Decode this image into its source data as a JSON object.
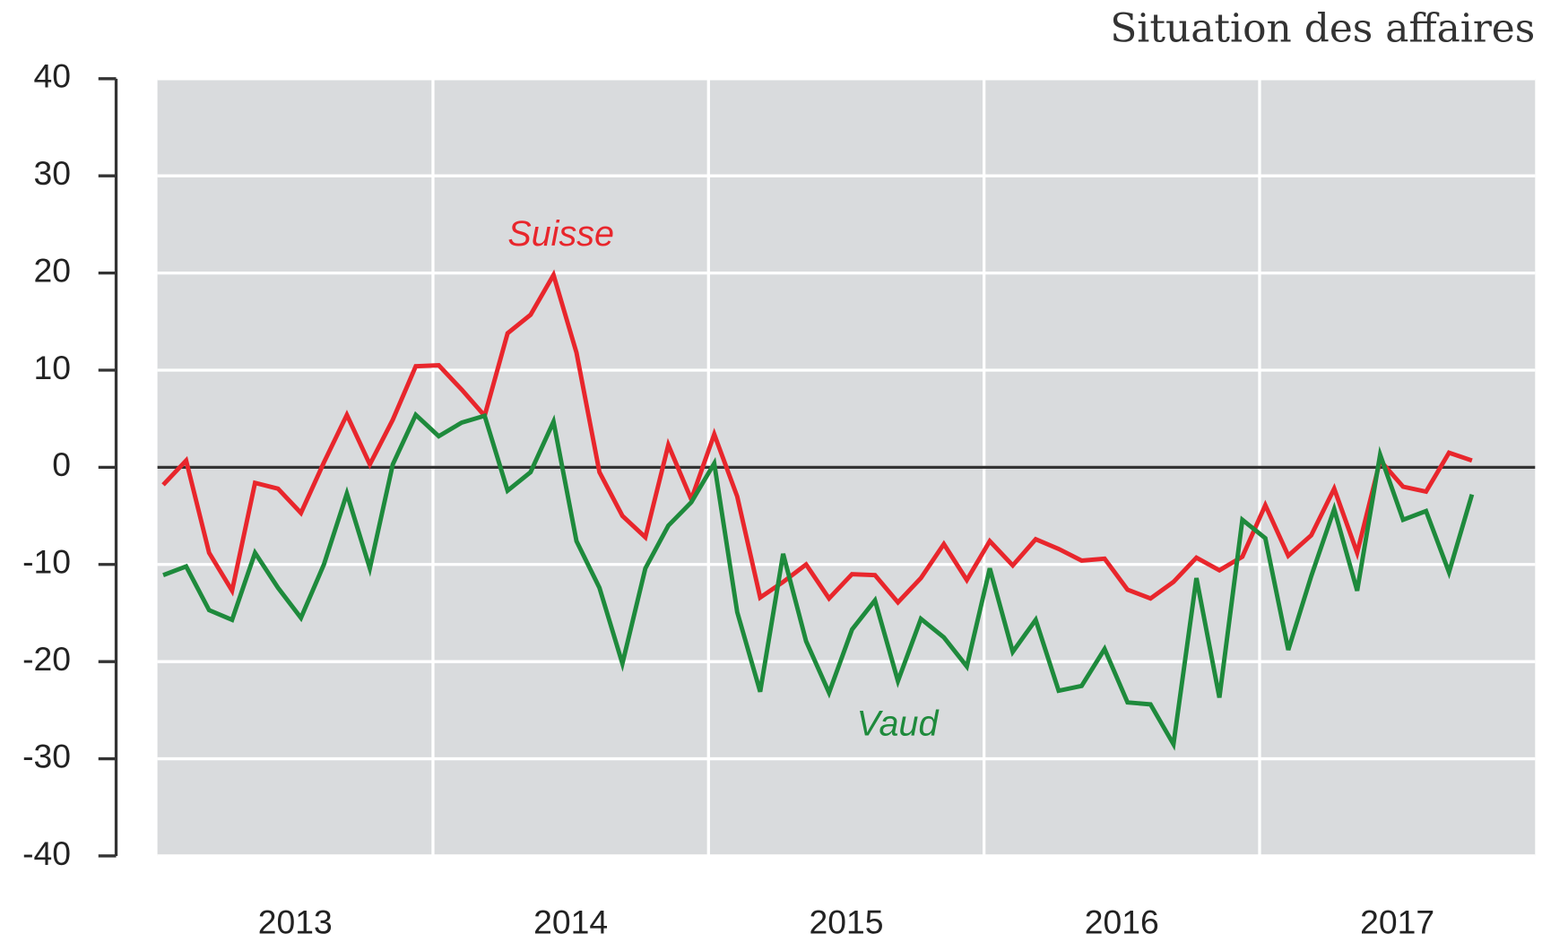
{
  "chart_data": {
    "type": "line",
    "title": "Situation des affaires",
    "categories": [
      null,
      null,
      null,
      null,
      null,
      "2013",
      null,
      null,
      null,
      null,
      null,
      null,
      null,
      null,
      null,
      null,
      null,
      "2014",
      null,
      null,
      null,
      null,
      null,
      null,
      null,
      null,
      null,
      null,
      null,
      "2015",
      null,
      null,
      null,
      null,
      null,
      null,
      null,
      null,
      null,
      null,
      null,
      "2016",
      null,
      null,
      null,
      null,
      null,
      null,
      null,
      null,
      null,
      null,
      null,
      "2017",
      null,
      null,
      null,
      null
    ],
    "series": [
      {
        "name": "Suisse",
        "color": "#e8262c",
        "values": [
          -1.8,
          0.7,
          -8.8,
          -12.7,
          -1.6,
          -2.2,
          -4.7,
          0.5,
          5.4,
          0.3,
          4.9,
          10.4,
          10.5,
          8.0,
          5.3,
          13.8,
          15.7,
          19.8,
          11.8,
          -0.5,
          -5.0,
          -7.2,
          2.3,
          -3.3,
          3.4,
          -3.0,
          -13.4,
          -11.8,
          -10.0,
          -13.5,
          -11.0,
          -11.1,
          -13.9,
          -11.4,
          -7.9,
          -11.6,
          -7.6,
          -10.1,
          -7.4,
          -8.4,
          -9.6,
          -9.4,
          -12.6,
          -13.5,
          -11.8,
          -9.3,
          -10.6,
          -9.2,
          -3.9,
          -9.1,
          -7.0,
          -2.2,
          -8.8,
          0.7,
          -2.0,
          -2.5,
          1.5,
          0.7
        ]
      },
      {
        "name": "Vaud",
        "color": "#1e8a3c",
        "values": [
          -11.1,
          -10.2,
          -14.7,
          -15.7,
          -8.8,
          -12.4,
          -15.5,
          -10.0,
          -2.7,
          -10.4,
          0.3,
          5.4,
          3.2,
          4.6,
          5.3,
          -2.4,
          -0.5,
          4.7,
          -7.6,
          -12.4,
          -20.2,
          -10.4,
          -6.0,
          -3.6,
          0.4,
          -14.9,
          -23.1,
          -8.9,
          -17.9,
          -23.2,
          -16.7,
          -13.7,
          -22.0,
          -15.6,
          -17.5,
          -20.5,
          -10.4,
          -19.0,
          -15.7,
          -23.0,
          -22.5,
          -18.7,
          -24.2,
          -24.4,
          -28.5,
          -11.4,
          -23.7,
          -5.4,
          -7.3,
          -18.8,
          -11.2,
          -4.3,
          -12.7,
          1.3,
          -5.4,
          -4.5,
          -10.8,
          -2.8
        ]
      }
    ],
    "ylim": [
      -40,
      40
    ],
    "yticks": [
      -40,
      -30,
      -20,
      -10,
      0,
      10,
      20,
      30,
      40
    ],
    "grid": true
  }
}
